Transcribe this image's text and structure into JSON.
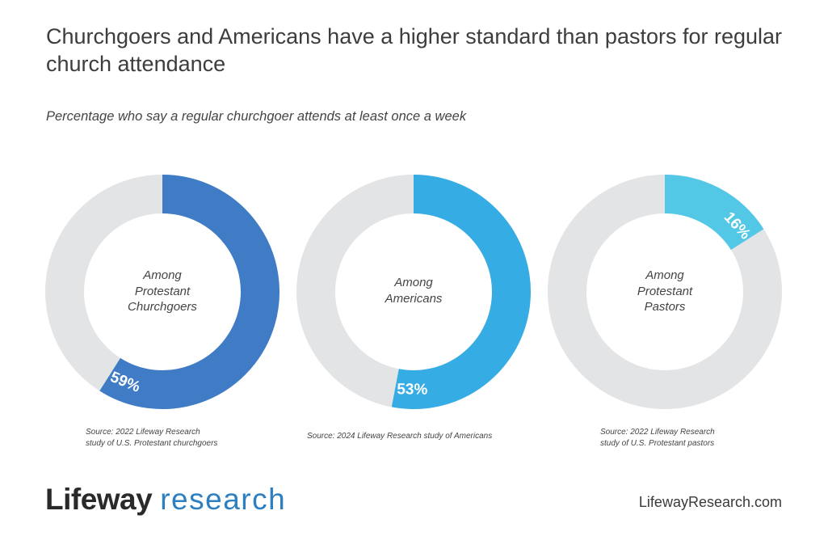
{
  "title": "Churchgoers and Americans have a higher standard than pastors for regular church attendance",
  "subtitle": "Percentage who say a regular churchgoer attends at least once a week",
  "colors": {
    "track": "#e3e4e6",
    "churchgoers": "#3f7cc5",
    "americans": "#36ace4",
    "pastors": "#52c7e6",
    "logo_research": "#2e7fc0"
  },
  "chart_data": [
    {
      "type": "pie",
      "variant": "donut",
      "label_lines": [
        "Among",
        "Protestant",
        "Churchgoers"
      ],
      "value": 59,
      "value_label": "59%",
      "color": "#3f7cc5",
      "source_lines": [
        "Source: 2022 Lifeway Research",
        "study of U.S. Protestant churchgoers"
      ]
    },
    {
      "type": "pie",
      "variant": "donut",
      "label_lines": [
        "Among",
        "Americans"
      ],
      "value": 53,
      "value_label": "53%",
      "color": "#36ace4",
      "source_lines": [
        "Source: 2024 Lifeway Research study of Americans"
      ]
    },
    {
      "type": "pie",
      "variant": "donut",
      "label_lines": [
        "Among",
        "Protestant",
        "Pastors"
      ],
      "value": 16,
      "value_label": "16%",
      "color": "#52c7e6",
      "source_lines": [
        "Source: 2022 Lifeway Research",
        "study of U.S. Protestant pastors"
      ]
    }
  ],
  "footer": {
    "logo_brand": "Lifeway",
    "logo_research": "research",
    "website": "LifewayResearch.com"
  }
}
